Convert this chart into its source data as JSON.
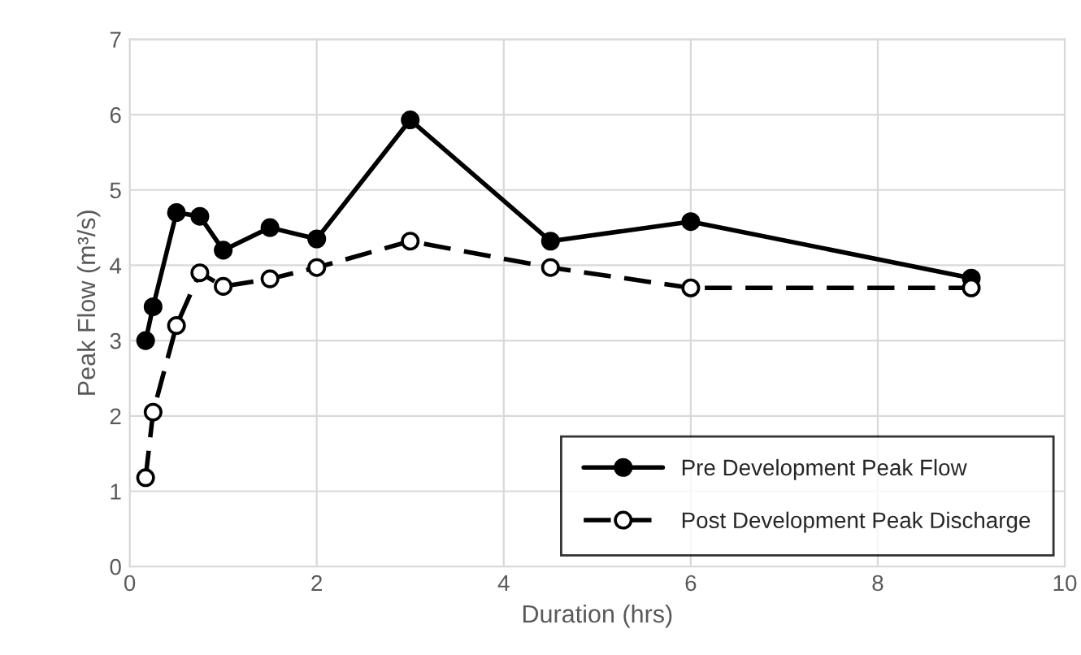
{
  "chart_data": {
    "type": "line",
    "xlabel": "Duration (hrs)",
    "ylabel": "Peak Flow (m³/s)",
    "x": [
      0.17,
      0.25,
      0.5,
      0.75,
      1,
      1.5,
      2,
      3,
      4.5,
      6,
      9
    ],
    "series": [
      {
        "name": "Pre Development Peak Flow",
        "color": "#000000",
        "values": [
          3.0,
          3.45,
          4.7,
          4.65,
          4.2,
          4.5,
          4.35,
          5.93,
          4.32,
          4.58,
          3.83
        ],
        "marker": "circle",
        "line_style": "solid"
      },
      {
        "name": "Post Development Peak Discharge",
        "color": "#000000",
        "values": [
          1.18,
          2.05,
          3.2,
          3.9,
          3.72,
          3.82,
          3.97,
          4.32,
          3.97,
          3.7,
          3.7
        ],
        "marker": "circle",
        "line_style": "dashed"
      }
    ],
    "xlim": [
      0,
      10
    ],
    "xticks": [
      0,
      2,
      4,
      6,
      8,
      10
    ],
    "ylim": [
      0,
      7
    ],
    "yticks": [
      0,
      1,
      2,
      3,
      4,
      5,
      6,
      7
    ],
    "grid": true,
    "legend": "lower right"
  }
}
